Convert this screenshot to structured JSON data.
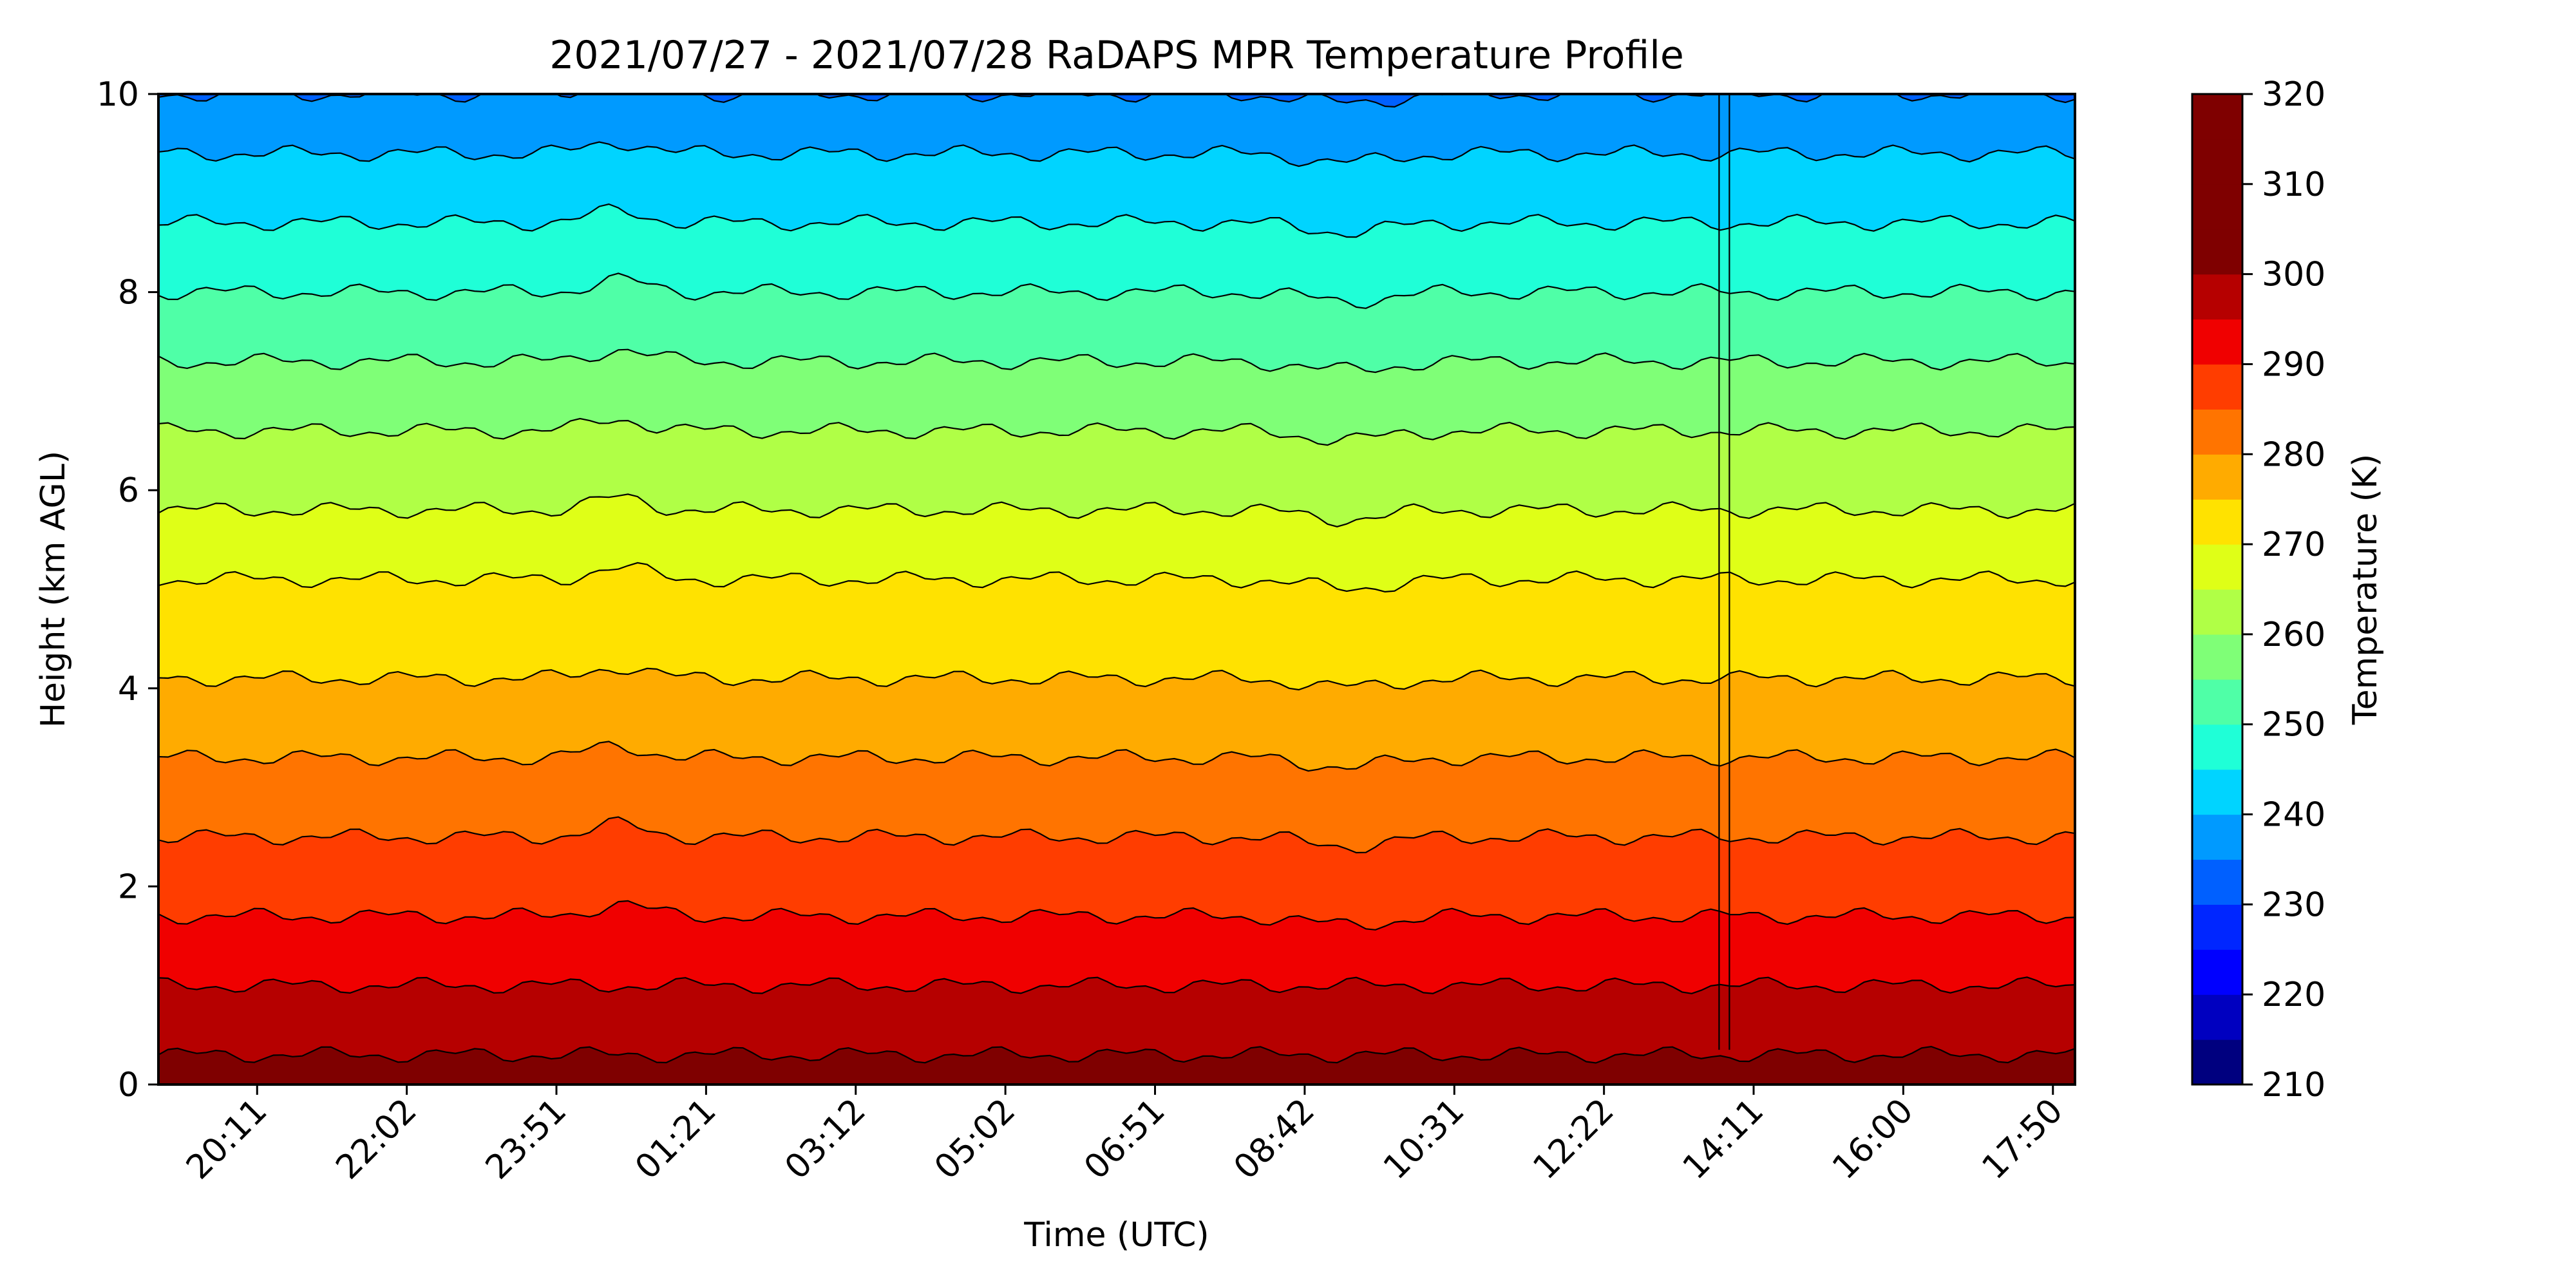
{
  "chart_data": {
    "type": "heatmap",
    "subtype": "filled-contour",
    "title": "2021/07/27 - 2021/07/28 RaDAPS MPR Temperature Profile",
    "xlabel": "Time (UTC)",
    "ylabel": "Height (km AGL)",
    "x_ticks": [
      "20:11",
      "22:02",
      "23:51",
      "01:21",
      "03:12",
      "05:02",
      "06:51",
      "08:42",
      "10:31",
      "12:22",
      "14:11",
      "16:00",
      "17:50"
    ],
    "x_tick_rotation_deg": 45,
    "ylim": [
      0,
      10
    ],
    "y_ticks": [
      0,
      2,
      4,
      6,
      8,
      10
    ],
    "grid": false,
    "colormap": "jet",
    "colorbar": {
      "label": "Temperature (K)",
      "range": [
        210,
        320
      ],
      "level_step": 5,
      "ticks": [
        210,
        220,
        230,
        240,
        250,
        260,
        270,
        280,
        290,
        300,
        310,
        320
      ],
      "colors": [
        "#00007f",
        "#0000c0",
        "#0000ff",
        "#0026ff",
        "#0060ff",
        "#009aff",
        "#00d4ff",
        "#1fffd7",
        "#4fffa7",
        "#7fff77",
        "#b0ff46",
        "#dfff17",
        "#ffe200",
        "#ffab00",
        "#ff7400",
        "#ff3d00",
        "#f00000",
        "#b60000",
        "#7f0000",
        "#7f0000",
        "#7f0000",
        "#7f0000"
      ]
    },
    "contour_line_color": "#000000",
    "approx_contour_heights_km": [
      {
        "T": 300,
        "height_km": 0.3
      },
      {
        "T": 295,
        "height_km": 1.0
      },
      {
        "T": 290,
        "height_km": 1.7
      },
      {
        "T": 285,
        "height_km": 2.5
      },
      {
        "T": 280,
        "height_km": 3.3
      },
      {
        "T": 275,
        "height_km": 4.1
      },
      {
        "T": 270,
        "height_km": 5.1
      },
      {
        "T": 265,
        "height_km": 5.8
      },
      {
        "T": 260,
        "height_km": 6.6
      },
      {
        "T": 255,
        "height_km": 7.3
      },
      {
        "T": 250,
        "height_km": 8.0
      },
      {
        "T": 245,
        "height_km": 8.7
      },
      {
        "T": 240,
        "height_km": 9.4
      },
      {
        "T": 235,
        "height_km": 10.0
      }
    ]
  }
}
